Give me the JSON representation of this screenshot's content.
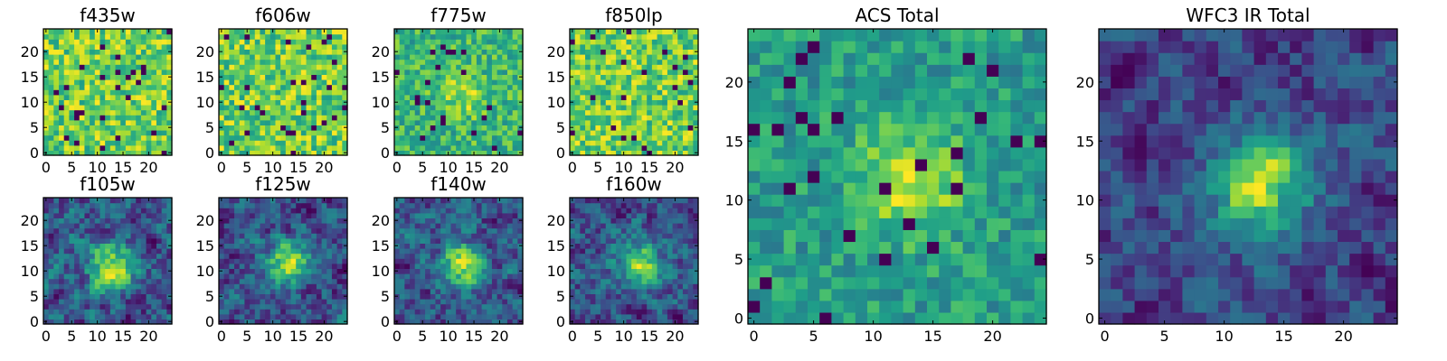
{
  "chart_data": [
    {
      "type": "heatmap",
      "title": "f435w",
      "xlim": [
        0,
        24
      ],
      "ylim": [
        0,
        24
      ],
      "xticks": [
        0,
        5,
        10,
        15,
        20
      ],
      "yticks": [
        0,
        5,
        10,
        15,
        20
      ],
      "colormap": "viridis",
      "pattern": "noise",
      "seed": 11
    },
    {
      "type": "heatmap",
      "title": "f606w",
      "xlim": [
        0,
        24
      ],
      "ylim": [
        0,
        24
      ],
      "xticks": [
        0,
        5,
        10,
        15,
        20
      ],
      "yticks": [
        0,
        5,
        10,
        15,
        20
      ],
      "colormap": "viridis",
      "pattern": "noise",
      "seed": 22
    },
    {
      "type": "heatmap",
      "title": "f775w",
      "xlim": [
        0,
        24
      ],
      "ylim": [
        0,
        24
      ],
      "xticks": [
        0,
        5,
        10,
        15,
        20
      ],
      "yticks": [
        0,
        5,
        10,
        15,
        20
      ],
      "colormap": "viridis",
      "pattern": "faint-center",
      "seed": 33
    },
    {
      "type": "heatmap",
      "title": "f850lp",
      "xlim": [
        0,
        24
      ],
      "ylim": [
        0,
        24
      ],
      "xticks": [
        0,
        5,
        10,
        15,
        20
      ],
      "yticks": [
        0,
        5,
        10,
        15,
        20
      ],
      "colormap": "viridis",
      "pattern": "noise",
      "seed": 44
    },
    {
      "type": "heatmap",
      "title": "f105w",
      "xlim": [
        0,
        24
      ],
      "ylim": [
        0,
        24
      ],
      "xticks": [
        0,
        5,
        10,
        15,
        20
      ],
      "yticks": [
        0,
        5,
        10,
        15,
        20
      ],
      "colormap": "viridis",
      "pattern": "smooth-center",
      "seed": 55
    },
    {
      "type": "heatmap",
      "title": "f125w",
      "xlim": [
        0,
        24
      ],
      "ylim": [
        0,
        24
      ],
      "xticks": [
        0,
        5,
        10,
        15,
        20
      ],
      "yticks": [
        0,
        5,
        10,
        15,
        20
      ],
      "colormap": "viridis",
      "pattern": "smooth-center",
      "seed": 66
    },
    {
      "type": "heatmap",
      "title": "f140w",
      "xlim": [
        0,
        24
      ],
      "ylim": [
        0,
        24
      ],
      "xticks": [
        0,
        5,
        10,
        15,
        20
      ],
      "yticks": [
        0,
        5,
        10,
        15,
        20
      ],
      "colormap": "viridis",
      "pattern": "smooth-center",
      "seed": 77
    },
    {
      "type": "heatmap",
      "title": "f160w",
      "xlim": [
        0,
        24
      ],
      "ylim": [
        0,
        24
      ],
      "xticks": [
        0,
        5,
        10,
        15,
        20
      ],
      "yticks": [
        0,
        5,
        10,
        15,
        20
      ],
      "colormap": "viridis",
      "pattern": "smooth-center",
      "seed": 88
    },
    {
      "type": "heatmap",
      "title": "ACS Total",
      "xlim": [
        0,
        24
      ],
      "ylim": [
        0,
        24
      ],
      "xticks": [
        0,
        5,
        10,
        15,
        20
      ],
      "yticks": [
        0,
        5,
        10,
        15,
        20
      ],
      "colormap": "viridis",
      "pattern": "bright-center",
      "seed": 99
    },
    {
      "type": "heatmap",
      "title": "WFC3 IR Total",
      "xlim": [
        0,
        24
      ],
      "ylim": [
        0,
        24
      ],
      "xticks": [
        0,
        5,
        10,
        15,
        20
      ],
      "yticks": [
        0,
        5,
        10,
        15,
        20
      ],
      "colormap": "viridis",
      "pattern": "bright-center-smooth",
      "seed": 123
    }
  ]
}
